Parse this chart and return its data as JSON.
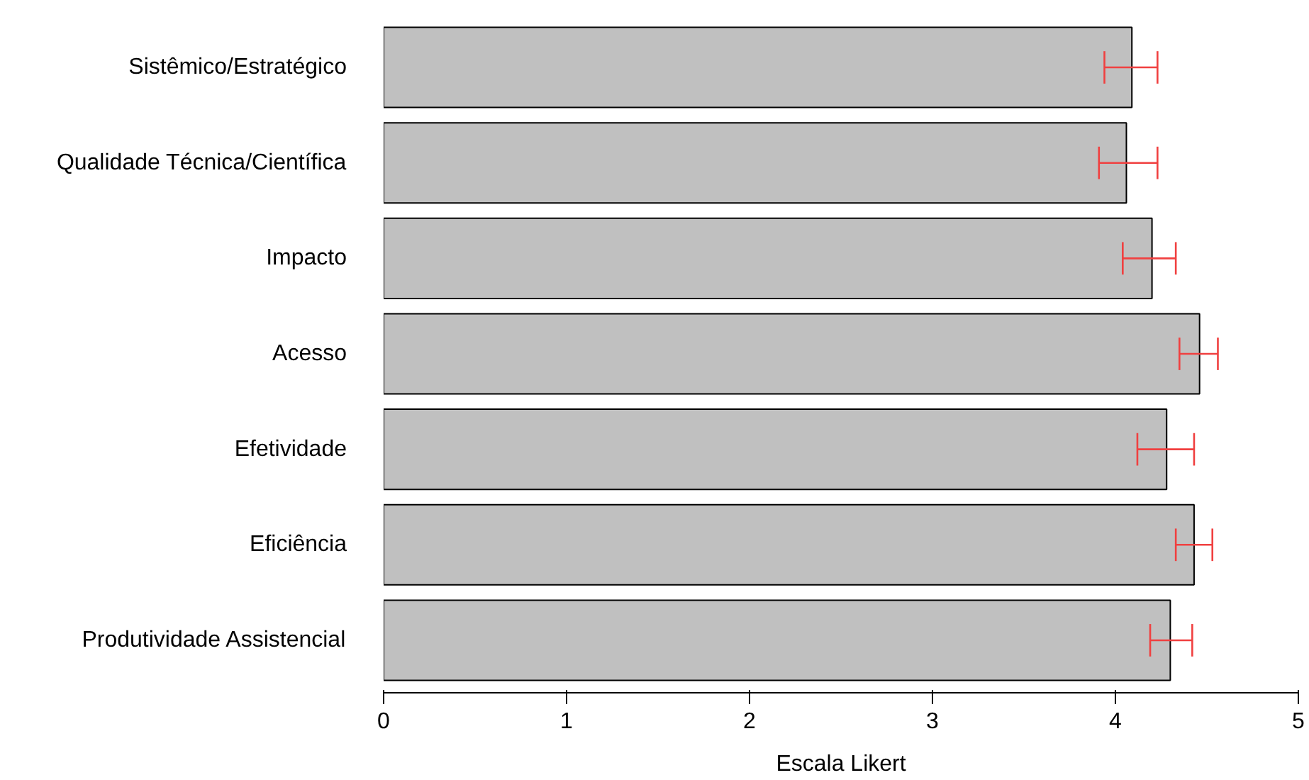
{
  "chart_data": {
    "type": "bar",
    "orientation": "horizontal",
    "xlabel": "Escala Likert",
    "categories": [
      "Sistêmico/Estratégico",
      "Qualidade Técnica/Científica",
      "Impacto",
      "Acesso",
      "Efetividade",
      "Eficiência",
      "Produtividade Assistencial"
    ],
    "values": [
      4.09,
      4.06,
      4.2,
      4.46,
      4.28,
      4.43,
      4.3
    ],
    "errors": [
      [
        3.94,
        4.23
      ],
      [
        3.91,
        4.23
      ],
      [
        4.04,
        4.33
      ],
      [
        4.35,
        4.56
      ],
      [
        4.12,
        4.43
      ],
      [
        4.33,
        4.53
      ],
      [
        4.19,
        4.42
      ]
    ],
    "color": "#c0c0c0",
    "xlim": [
      0,
      5
    ],
    "xticks": [
      0,
      1,
      2,
      3,
      4,
      5
    ],
    "grid": false
  }
}
